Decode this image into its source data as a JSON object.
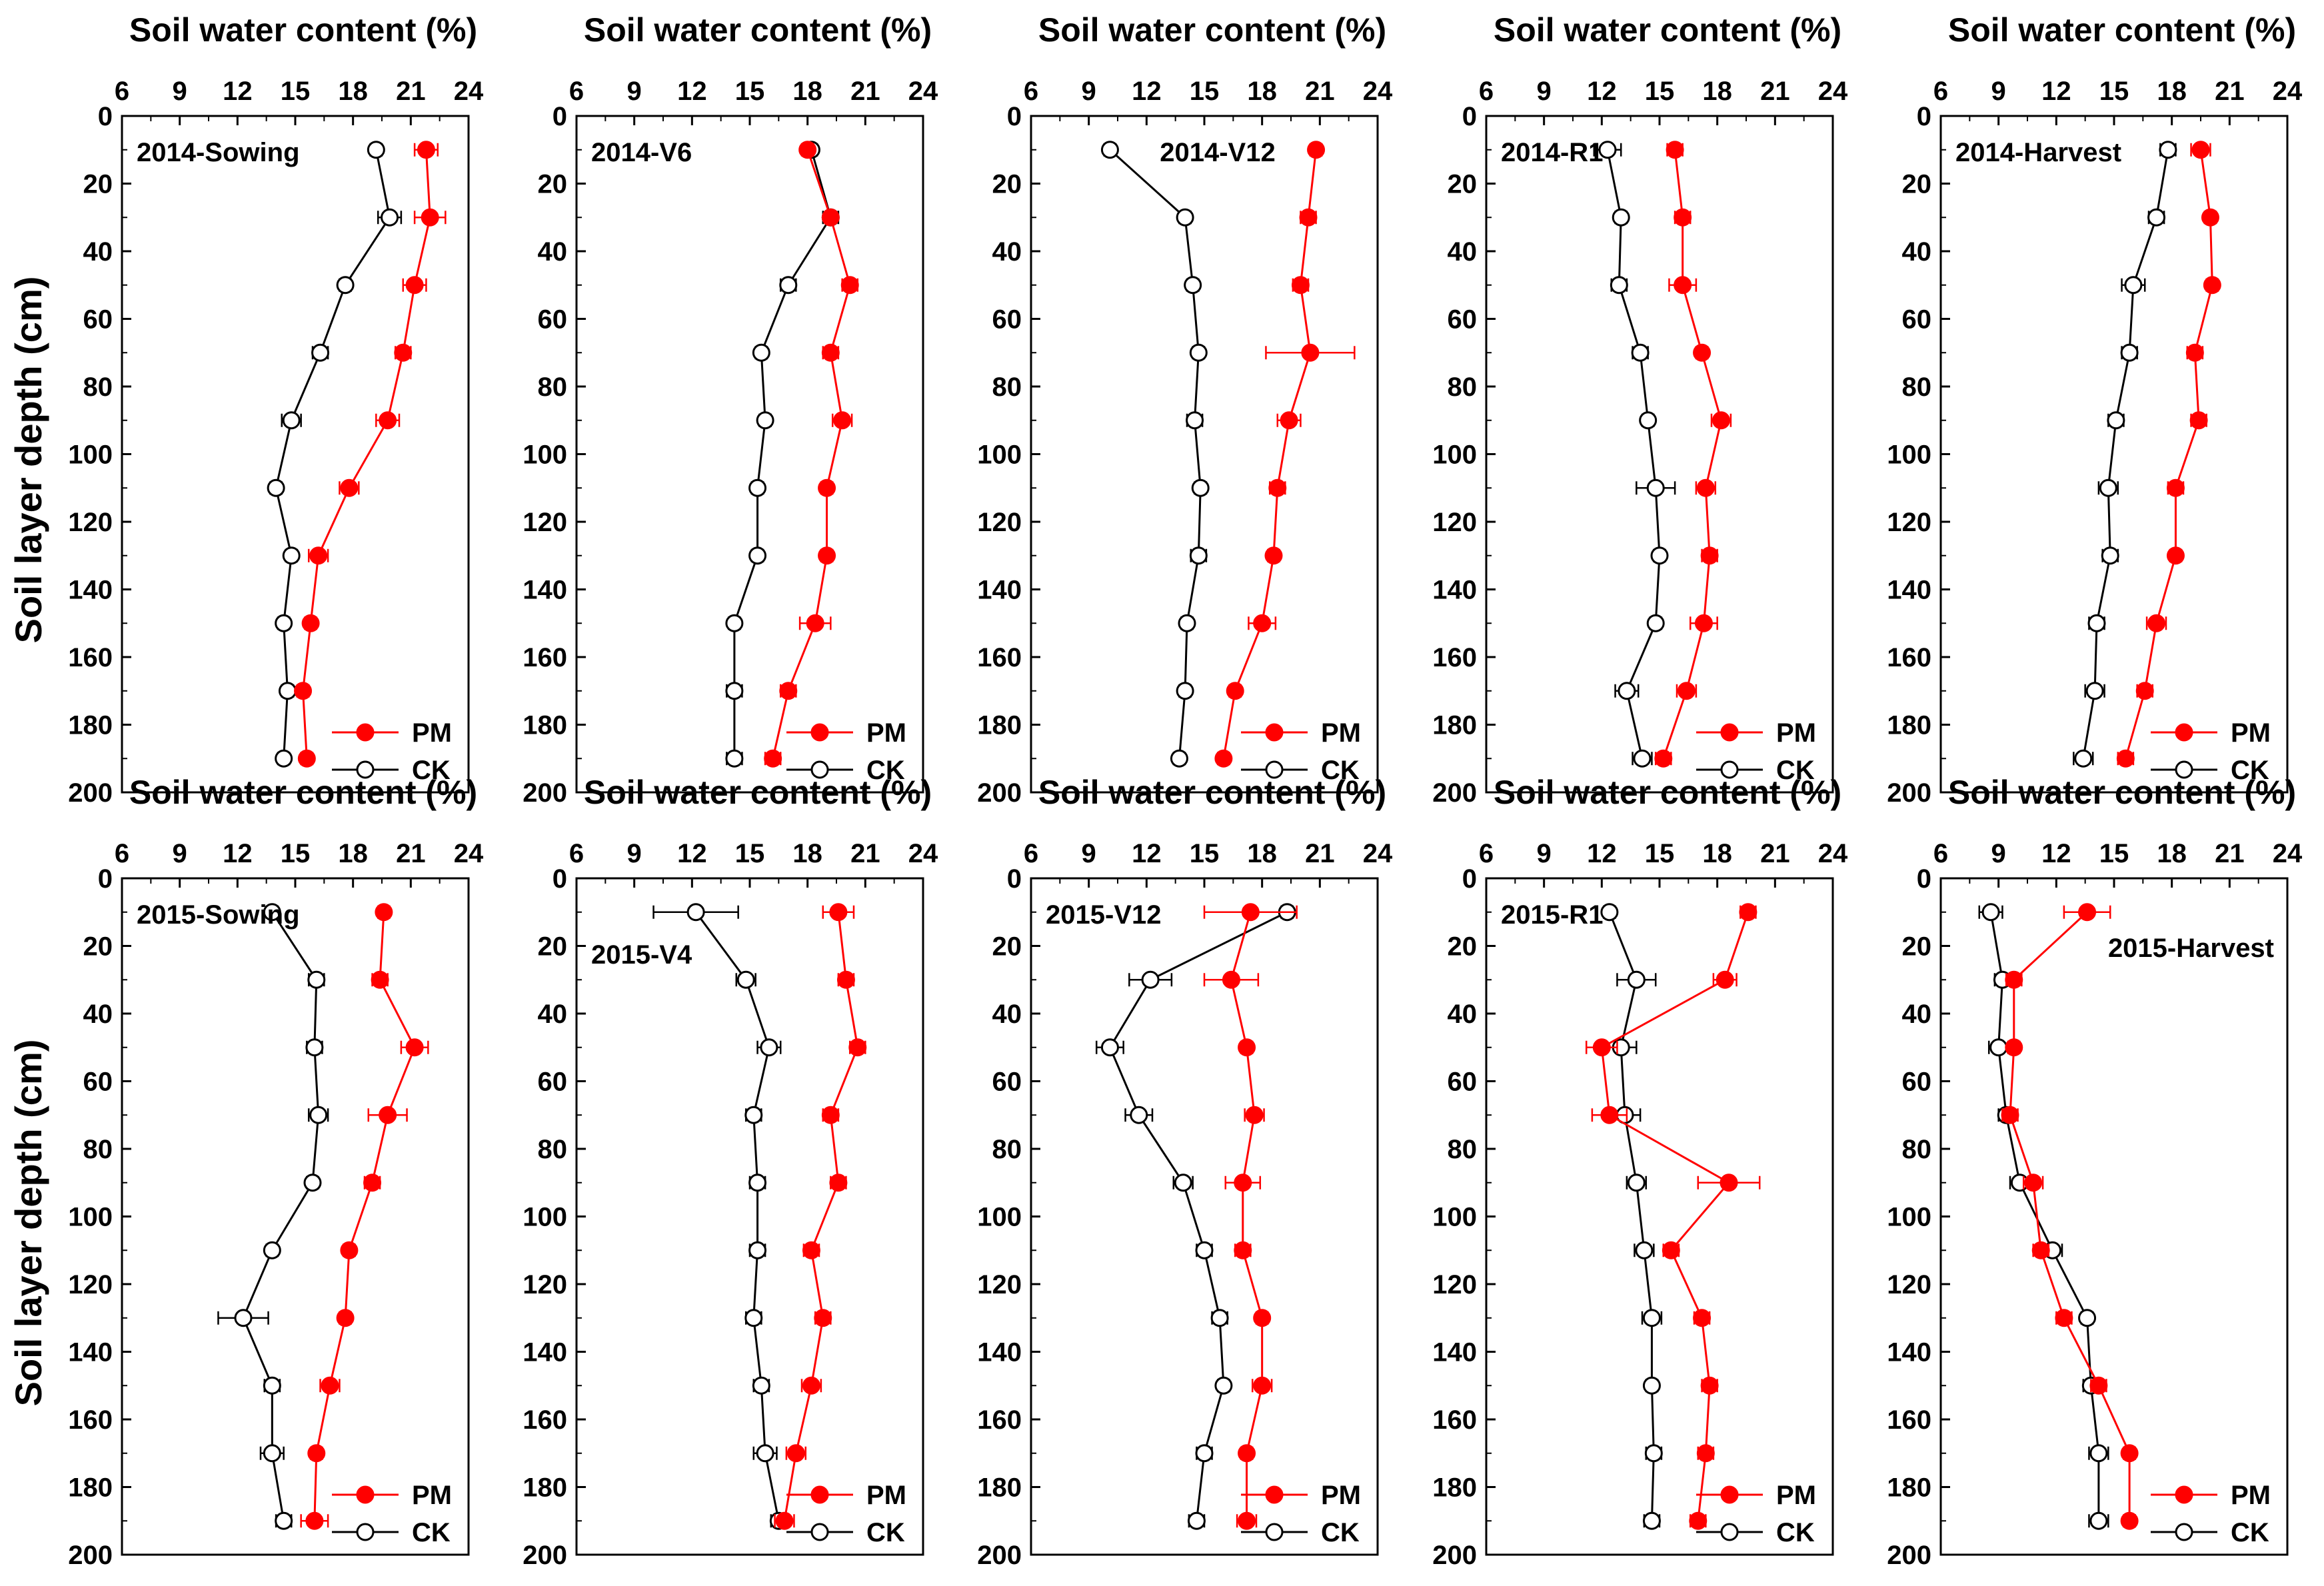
{
  "figure": {
    "ylabel": "Soil layer depth (cm)",
    "xlabel": "Soil water content (%)",
    "colors": {
      "PM": "#ff0000",
      "CK": "#000000",
      "axis": "#000000"
    }
  },
  "chart_data": [
    {
      "type": "line",
      "title": "2014-Sowing",
      "label_position": "top-left",
      "xlabel": "Soil water content (%)",
      "ylabel": "Soil layer depth (cm)",
      "xlim": [
        6,
        24
      ],
      "ylim": [
        0,
        200
      ],
      "xticks": [
        "6",
        "9",
        "12",
        "15",
        "18",
        "21",
        "24"
      ],
      "yticks": [
        "0",
        "20",
        "40",
        "60",
        "80",
        "100",
        "120",
        "140",
        "160",
        "180",
        "200"
      ],
      "legend": [
        "PM",
        "CK"
      ],
      "legend_position": "bottom-right",
      "depths": [
        10,
        30,
        50,
        70,
        90,
        110,
        130,
        150,
        170,
        190
      ],
      "series": [
        {
          "name": "PM",
          "values": [
            21.8,
            22,
            21.2,
            20.6,
            19.8,
            17.8,
            16.2,
            15.8,
            15.4,
            15.6
          ],
          "errors": [
            0.6,
            0.8,
            0.6,
            0.4,
            0.6,
            0.5,
            0.5,
            0.3,
            0.3,
            0.3
          ]
        },
        {
          "name": "CK",
          "values": [
            19.2,
            19.9,
            17.6,
            16.3,
            14.8,
            14,
            14.8,
            14.4,
            14.6,
            14.4
          ],
          "errors": [
            0.3,
            0.6,
            0.3,
            0.4,
            0.5,
            0.3,
            0.3,
            0.3,
            0.3,
            0.3
          ]
        }
      ]
    },
    {
      "type": "line",
      "title": "2014-V6",
      "label_position": "top-left",
      "xlabel": "Soil water content (%)",
      "ylabel": "Soil layer depth (cm)",
      "xlim": [
        6,
        24
      ],
      "ylim": [
        0,
        200
      ],
      "xticks": [
        "6",
        "9",
        "12",
        "15",
        "18",
        "21",
        "24"
      ],
      "yticks": [
        "0",
        "20",
        "40",
        "60",
        "80",
        "100",
        "120",
        "140",
        "160",
        "180",
        "200"
      ],
      "legend": [
        "PM",
        "CK"
      ],
      "legend_position": "bottom-right",
      "depths": [
        10,
        30,
        50,
        70,
        90,
        110,
        130,
        150,
        170,
        190
      ],
      "series": [
        {
          "name": "PM",
          "values": [
            18,
            19.2,
            20.2,
            19.2,
            19.8,
            19,
            19,
            18.4,
            17,
            16.2
          ],
          "errors": [
            0.3,
            0.3,
            0.4,
            0.4,
            0.5,
            0.3,
            0.3,
            0.8,
            0.4,
            0.4
          ]
        },
        {
          "name": "CK",
          "values": [
            18.2,
            19.2,
            17,
            15.6,
            15.8,
            15.4,
            15.4,
            14.2,
            14.2,
            14.2
          ],
          "errors": [
            0.3,
            0.4,
            0.4,
            0.3,
            0.3,
            0.3,
            0.3,
            0.3,
            0.4,
            0.4
          ]
        }
      ]
    },
    {
      "type": "line",
      "title": "2014-V12",
      "label_position": "top-center",
      "xlabel": "Soil water content (%)",
      "ylabel": "Soil layer depth (cm)",
      "xlim": [
        6,
        24
      ],
      "ylim": [
        0,
        200
      ],
      "xticks": [
        "6",
        "9",
        "12",
        "15",
        "18",
        "21",
        "24"
      ],
      "yticks": [
        "0",
        "20",
        "40",
        "60",
        "80",
        "100",
        "120",
        "140",
        "160",
        "180",
        "200"
      ],
      "legend": [
        "PM",
        "CK"
      ],
      "legend_position": "bottom-right",
      "depths": [
        10,
        30,
        50,
        70,
        90,
        110,
        130,
        150,
        170,
        190
      ],
      "series": [
        {
          "name": "PM",
          "values": [
            20.8,
            20.4,
            20,
            20.5,
            19.4,
            18.8,
            18.6,
            18,
            16.6,
            16
          ],
          "errors": [
            0.3,
            0.4,
            0.4,
            2.3,
            0.6,
            0.4,
            0.3,
            0.7,
            0.3,
            0.3
          ]
        },
        {
          "name": "CK",
          "values": [
            10.1,
            14,
            14.4,
            14.7,
            14.5,
            14.8,
            14.7,
            14.1,
            14,
            13.7
          ],
          "errors": [
            0.3,
            0.3,
            0.3,
            0.3,
            0.4,
            0.3,
            0.4,
            0.3,
            0.3,
            0.3
          ]
        }
      ]
    },
    {
      "type": "line",
      "title": "2014-R1",
      "label_position": "top-left",
      "xlabel": "Soil water content (%)",
      "ylabel": "Soil layer depth (cm)",
      "xlim": [
        6,
        24
      ],
      "ylim": [
        0,
        200
      ],
      "xticks": [
        "6",
        "9",
        "12",
        "15",
        "18",
        "21",
        "24"
      ],
      "yticks": [
        "0",
        "20",
        "40",
        "60",
        "80",
        "100",
        "120",
        "140",
        "160",
        "180",
        "200"
      ],
      "legend": [
        "PM",
        "CK"
      ],
      "legend_position": "bottom-right",
      "depths": [
        10,
        30,
        50,
        70,
        90,
        110,
        130,
        150,
        170,
        190
      ],
      "series": [
        {
          "name": "PM",
          "values": [
            15.8,
            16.2,
            16.2,
            17.2,
            18.2,
            17.4,
            17.6,
            17.3,
            16.4,
            15.2
          ],
          "errors": [
            0.4,
            0.4,
            0.7,
            0.3,
            0.5,
            0.5,
            0.4,
            0.7,
            0.5,
            0.4
          ]
        },
        {
          "name": "CK",
          "values": [
            12.3,
            13,
            12.9,
            14,
            14.4,
            14.8,
            15,
            14.8,
            13.3,
            14.1
          ],
          "errors": [
            0.7,
            0.3,
            0.4,
            0.4,
            0.3,
            1.0,
            0.3,
            0.3,
            0.6,
            0.5
          ]
        }
      ]
    },
    {
      "type": "line",
      "title": "2014-Harvest",
      "label_position": "top-left",
      "xlabel": "Soil water content (%)",
      "ylabel": "Soil layer depth (cm)",
      "xlim": [
        6,
        24
      ],
      "ylim": [
        0,
        200
      ],
      "xticks": [
        "6",
        "9",
        "12",
        "15",
        "18",
        "21",
        "24"
      ],
      "yticks": [
        "0",
        "20",
        "40",
        "60",
        "80",
        "100",
        "120",
        "140",
        "160",
        "180",
        "200"
      ],
      "legend": [
        "PM",
        "CK"
      ],
      "legend_position": "bottom-right",
      "depths": [
        10,
        30,
        50,
        70,
        90,
        110,
        130,
        150,
        170,
        190
      ],
      "series": [
        {
          "name": "PM",
          "values": [
            19.5,
            20,
            20.1,
            19.2,
            19.4,
            18.2,
            18.2,
            17.2,
            16.6,
            15.6
          ],
          "errors": [
            0.5,
            0.3,
            0.3,
            0.4,
            0.4,
            0.4,
            0.3,
            0.5,
            0.4,
            0.4
          ]
        },
        {
          "name": "CK",
          "values": [
            17.8,
            17.2,
            16,
            15.8,
            15.1,
            14.7,
            14.8,
            14.1,
            14,
            13.4
          ],
          "errors": [
            0.4,
            0.4,
            0.6,
            0.4,
            0.4,
            0.5,
            0.4,
            0.4,
            0.5,
            0.5
          ]
        }
      ]
    },
    {
      "type": "line",
      "title": "2015-Sowing",
      "label_position": "top-left",
      "xlabel": "Soil water content (%)",
      "ylabel": "Soil layer depth (cm)",
      "xlim": [
        6,
        24
      ],
      "ylim": [
        0,
        200
      ],
      "xticks": [
        "6",
        "9",
        "12",
        "15",
        "18",
        "21",
        "24"
      ],
      "yticks": [
        "0",
        "20",
        "40",
        "60",
        "80",
        "100",
        "120",
        "140",
        "160",
        "180",
        "200"
      ],
      "legend": [
        "PM",
        "CK"
      ],
      "legend_position": "bottom-right",
      "depths": [
        10,
        30,
        50,
        70,
        90,
        110,
        130,
        150,
        170,
        190
      ],
      "series": [
        {
          "name": "PM",
          "values": [
            19.6,
            19.4,
            21.2,
            19.8,
            19,
            17.8,
            17.6,
            16.8,
            16.1,
            16
          ],
          "errors": [
            0.3,
            0.4,
            0.7,
            1.0,
            0.4,
            0.3,
            0.3,
            0.5,
            0.3,
            0.7
          ]
        },
        {
          "name": "CK",
          "values": [
            13.8,
            16.1,
            16,
            16.2,
            15.9,
            13.8,
            12.3,
            13.8,
            13.8,
            14.4
          ],
          "errors": [
            0.3,
            0.4,
            0.4,
            0.5,
            0.3,
            0.3,
            1.3,
            0.4,
            0.6,
            0.4
          ]
        }
      ]
    },
    {
      "type": "line",
      "title": "2015-V4",
      "label_position": "left-below",
      "xlabel": "Soil water content (%)",
      "ylabel": "Soil layer depth (cm)",
      "xlim": [
        6,
        24
      ],
      "ylim": [
        0,
        200
      ],
      "xticks": [
        "6",
        "9",
        "12",
        "15",
        "18",
        "21",
        "24"
      ],
      "yticks": [
        "0",
        "20",
        "40",
        "60",
        "80",
        "100",
        "120",
        "140",
        "160",
        "180",
        "200"
      ],
      "legend": [
        "PM",
        "CK"
      ],
      "legend_position": "bottom-right",
      "depths": [
        10,
        30,
        50,
        70,
        90,
        110,
        130,
        150,
        170,
        190
      ],
      "series": [
        {
          "name": "PM",
          "values": [
            19.6,
            20,
            20.6,
            19.2,
            19.6,
            18.2,
            18.8,
            18.2,
            17.4,
            16.8
          ],
          "errors": [
            0.8,
            0.4,
            0.4,
            0.4,
            0.4,
            0.4,
            0.4,
            0.5,
            0.5,
            0.5
          ]
        },
        {
          "name": "CK",
          "values": [
            12.2,
            14.8,
            16,
            15.2,
            15.4,
            15.4,
            15.2,
            15.6,
            15.8,
            16.5
          ],
          "errors": [
            2.2,
            0.5,
            0.6,
            0.4,
            0.4,
            0.4,
            0.4,
            0.4,
            0.6,
            0.4
          ]
        }
      ]
    },
    {
      "type": "line",
      "title": "2015-V12",
      "label_position": "top-left",
      "xlabel": "Soil water content (%)",
      "ylabel": "Soil layer depth (cm)",
      "xlim": [
        6,
        24
      ],
      "ylim": [
        0,
        200
      ],
      "xticks": [
        "6",
        "9",
        "12",
        "15",
        "18",
        "21",
        "24"
      ],
      "yticks": [
        "0",
        "20",
        "40",
        "60",
        "80",
        "100",
        "120",
        "140",
        "160",
        "180",
        "200"
      ],
      "legend": [
        "PM",
        "CK"
      ],
      "legend_position": "bottom-right",
      "depths": [
        10,
        30,
        50,
        70,
        90,
        110,
        130,
        150,
        170,
        190
      ],
      "series": [
        {
          "name": "PM",
          "values": [
            17.4,
            16.4,
            17.2,
            17.6,
            17,
            17,
            18,
            18,
            17.2,
            17.2
          ],
          "errors": [
            2.4,
            1.4,
            0.3,
            0.5,
            0.9,
            0.4,
            0.3,
            0.5,
            0.3,
            0.5
          ]
        },
        {
          "name": "CK",
          "values": [
            19.3,
            12.2,
            10.1,
            11.6,
            13.9,
            15,
            15.8,
            16,
            15,
            14.6
          ],
          "errors": [
            0.3,
            1.1,
            0.7,
            0.7,
            0.5,
            0.4,
            0.4,
            0.3,
            0.4,
            0.4
          ]
        }
      ]
    },
    {
      "type": "line",
      "title": "2015-R1",
      "label_position": "top-left",
      "xlabel": "Soil water content (%)",
      "ylabel": "Soil layer depth (cm)",
      "xlim": [
        6,
        24
      ],
      "ylim": [
        0,
        200
      ],
      "xticks": [
        "6",
        "9",
        "12",
        "15",
        "18",
        "21",
        "24"
      ],
      "yticks": [
        "0",
        "20",
        "40",
        "60",
        "80",
        "100",
        "120",
        "140",
        "160",
        "180",
        "200"
      ],
      "legend": [
        "PM",
        "CK"
      ],
      "legend_position": "bottom-right",
      "depths": [
        10,
        30,
        50,
        70,
        90,
        110,
        130,
        150,
        170,
        190
      ],
      "series": [
        {
          "name": "PM",
          "values": [
            19.6,
            18.4,
            12,
            12.4,
            18.6,
            15.6,
            17.2,
            17.6,
            17.4,
            17
          ],
          "errors": [
            0.4,
            0.6,
            0.8,
            0.9,
            1.6,
            0.4,
            0.4,
            0.4,
            0.4,
            0.4
          ]
        },
        {
          "name": "CK",
          "values": [
            12.4,
            13.8,
            13,
            13.2,
            13.8,
            14.2,
            14.6,
            14.6,
            14.7,
            14.6
          ],
          "errors": [
            0.3,
            1.0,
            0.8,
            0.8,
            0.5,
            0.5,
            0.5,
            0.3,
            0.4,
            0.4
          ]
        }
      ]
    },
    {
      "type": "line",
      "title": "2015-Harvest",
      "label_position": "top-right-below",
      "xlabel": "Soil water content (%)",
      "ylabel": "Soil layer depth (cm)",
      "xlim": [
        6,
        24
      ],
      "ylim": [
        0,
        200
      ],
      "xticks": [
        "6",
        "9",
        "12",
        "15",
        "18",
        "21",
        "24"
      ],
      "yticks": [
        "0",
        "20",
        "40",
        "60",
        "80",
        "100",
        "120",
        "140",
        "160",
        "180",
        "200"
      ],
      "legend": [
        "PM",
        "CK"
      ],
      "legend_position": "bottom-right",
      "depths": [
        10,
        30,
        50,
        70,
        90,
        110,
        130,
        150,
        170,
        190
      ],
      "series": [
        {
          "name": "PM",
          "values": [
            13.6,
            9.8,
            9.8,
            9.6,
            10.8,
            11.2,
            12.4,
            14.2,
            15.8,
            15.8
          ],
          "errors": [
            1.2,
            0.4,
            0.3,
            0.4,
            0.5,
            0.4,
            0.4,
            0.4,
            0.3,
            0.3
          ]
        },
        {
          "name": "CK",
          "values": [
            8.6,
            9.2,
            9,
            9.4,
            10.1,
            11.8,
            13.6,
            13.8,
            14.2,
            14.2
          ],
          "errors": [
            0.6,
            0.4,
            0.5,
            0.4,
            0.5,
            0.5,
            0.3,
            0.4,
            0.5,
            0.5
          ]
        }
      ]
    }
  ]
}
